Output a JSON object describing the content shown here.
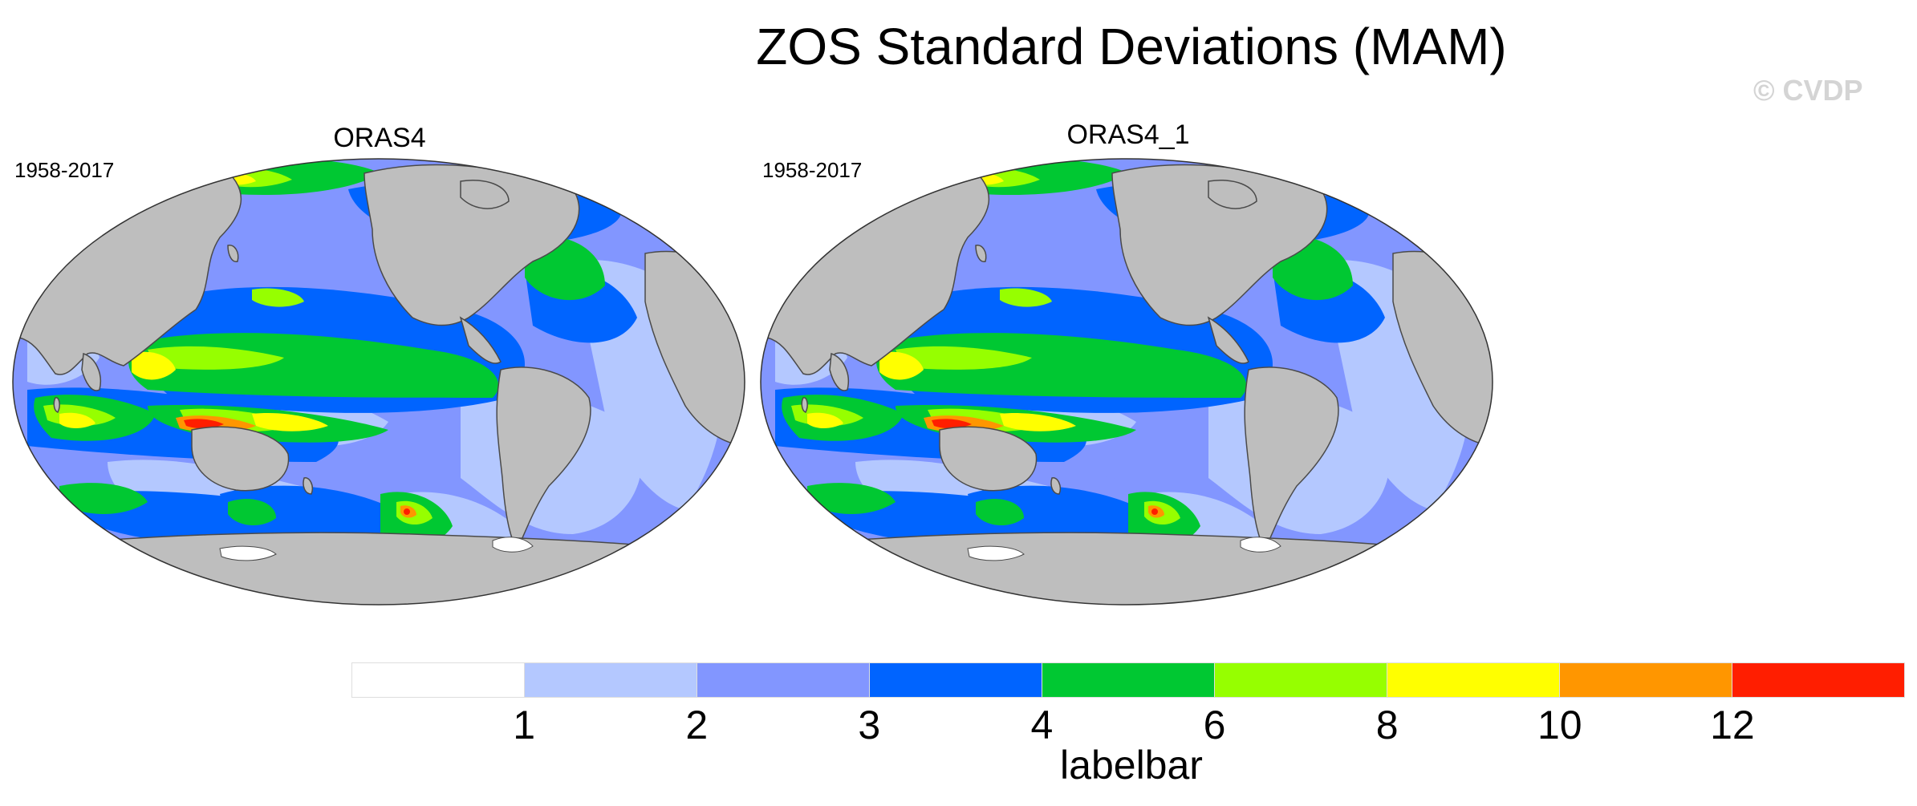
{
  "title": "ZOS Standard Deviations (MAM)",
  "watermark": "© CVDP",
  "panels": [
    {
      "name": "ORAS4",
      "period": "1958-2017"
    },
    {
      "name": "ORAS4_1",
      "period": "1958-2017"
    }
  ],
  "colorbar": {
    "label": "labelbar",
    "tick_labels": [
      "1",
      "2",
      "3",
      "4",
      "6",
      "8",
      "10",
      "12"
    ],
    "colors": [
      "#ffffff",
      "#b4c8ff",
      "#8296ff",
      "#0064ff",
      "#00c832",
      "#96ff00",
      "#ffff00",
      "#ff9600",
      "#ff1e00"
    ]
  },
  "palette": {
    "land": "#bebebe",
    "coast": "#4a4a4a"
  }
}
